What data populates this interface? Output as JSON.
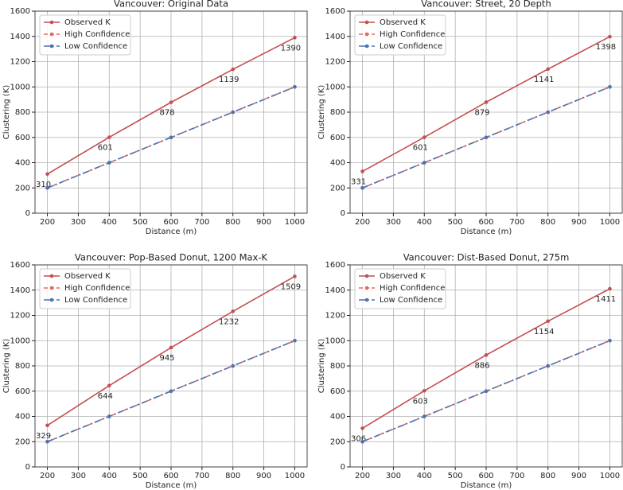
{
  "chart_data": [
    {
      "type": "line",
      "title": "Vancouver: Original Data",
      "xlabel": "Distance (m)",
      "ylabel": "Clustering (K)",
      "x": [
        200,
        400,
        600,
        800,
        1000
      ],
      "series": [
        {
          "name": "Observed K",
          "color": "#c44e52",
          "values": [
            310,
            601,
            878,
            1139,
            1390
          ]
        },
        {
          "name": "High Confidence",
          "color": "#e8675b",
          "values": [
            200,
            400,
            600,
            800,
            1000
          ]
        },
        {
          "name": "Low Confidence",
          "color": "#4c72b0",
          "values": [
            200,
            400,
            600,
            800,
            1000
          ]
        }
      ],
      "xlim": [
        160,
        1040
      ],
      "ylim": [
        0,
        1600
      ],
      "xticks": [
        200,
        300,
        400,
        500,
        600,
        700,
        800,
        900,
        1000
      ],
      "yticks": [
        0,
        200,
        400,
        600,
        800,
        1000,
        1200,
        1400,
        1600
      ],
      "grid": true,
      "legend": "upper-left"
    },
    {
      "type": "line",
      "title": "Vancouver: Street, 20 Depth",
      "xlabel": "Distance (m)",
      "ylabel": "Clustering (K)",
      "x": [
        200,
        400,
        600,
        800,
        1000
      ],
      "series": [
        {
          "name": "Observed K",
          "color": "#c44e52",
          "values": [
            331,
            601,
            879,
            1141,
            1398
          ]
        },
        {
          "name": "High Confidence",
          "color": "#e8675b",
          "values": [
            200,
            400,
            600,
            800,
            1000
          ]
        },
        {
          "name": "Low Confidence",
          "color": "#4c72b0",
          "values": [
            200,
            400,
            600,
            800,
            1000
          ]
        }
      ],
      "xlim": [
        160,
        1040
      ],
      "ylim": [
        0,
        1600
      ],
      "xticks": [
        200,
        300,
        400,
        500,
        600,
        700,
        800,
        900,
        1000
      ],
      "yticks": [
        0,
        200,
        400,
        600,
        800,
        1000,
        1200,
        1400,
        1600
      ],
      "grid": true,
      "legend": "upper-left"
    },
    {
      "type": "line",
      "title": "Vancouver: Pop-Based Donut, 1200 Max-K",
      "xlabel": "Distance (m)",
      "ylabel": "Clustering (K)",
      "x": [
        200,
        400,
        600,
        800,
        1000
      ],
      "series": [
        {
          "name": "Observed K",
          "color": "#c44e52",
          "values": [
            329,
            644,
            945,
            1232,
            1509
          ]
        },
        {
          "name": "High Confidence",
          "color": "#e8675b",
          "values": [
            200,
            400,
            600,
            800,
            1000
          ]
        },
        {
          "name": "Low Confidence",
          "color": "#4c72b0",
          "values": [
            200,
            400,
            600,
            800,
            1000
          ]
        }
      ],
      "xlim": [
        160,
        1040
      ],
      "ylim": [
        0,
        1600
      ],
      "xticks": [
        200,
        300,
        400,
        500,
        600,
        700,
        800,
        900,
        1000
      ],
      "yticks": [
        0,
        200,
        400,
        600,
        800,
        1000,
        1200,
        1400,
        1600
      ],
      "grid": true,
      "legend": "upper-left"
    },
    {
      "type": "line",
      "title": "Vancouver: Dist-Based Donut, 275m",
      "xlabel": "Distance (m)",
      "ylabel": "Clustering (K)",
      "x": [
        200,
        400,
        600,
        800,
        1000
      ],
      "series": [
        {
          "name": "Observed K",
          "color": "#c44e52",
          "values": [
            306,
            603,
            886,
            1154,
            1411
          ]
        },
        {
          "name": "High Confidence",
          "color": "#e8675b",
          "values": [
            200,
            400,
            600,
            800,
            1000
          ]
        },
        {
          "name": "Low Confidence",
          "color": "#4c72b0",
          "values": [
            200,
            400,
            600,
            800,
            1000
          ]
        }
      ],
      "xlim": [
        160,
        1040
      ],
      "ylim": [
        0,
        1600
      ],
      "xticks": [
        200,
        300,
        400,
        500,
        600,
        700,
        800,
        900,
        1000
      ],
      "yticks": [
        0,
        200,
        400,
        600,
        800,
        1000,
        1200,
        1400,
        1600
      ],
      "grid": true,
      "legend": "upper-left"
    }
  ]
}
